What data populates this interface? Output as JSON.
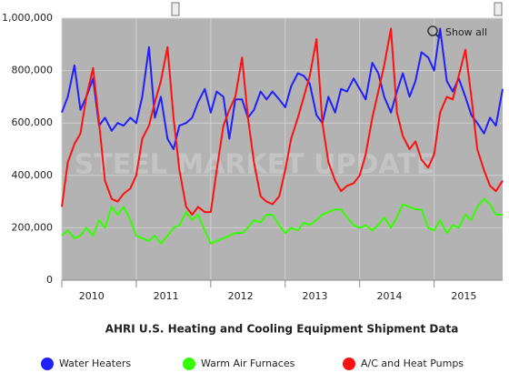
{
  "chart_data": {
    "type": "line",
    "title": "AHRI U.S. Heating and Cooling Equipment Shipment Data",
    "watermark": "STEEL MARKET UPDATE",
    "button": "Show all",
    "x": [
      2010,
      2010.08,
      2010.17,
      2010.25,
      2010.33,
      2010.42,
      2010.5,
      2010.58,
      2010.67,
      2010.75,
      2010.83,
      2010.92,
      2011,
      2011.08,
      2011.17,
      2011.25,
      2011.33,
      2011.42,
      2011.5,
      2011.58,
      2011.67,
      2011.75,
      2011.83,
      2011.92,
      2012,
      2012.08,
      2012.17,
      2012.25,
      2012.33,
      2012.42,
      2012.5,
      2012.58,
      2012.67,
      2012.75,
      2012.83,
      2012.92,
      2013,
      2013.08,
      2013.17,
      2013.25,
      2013.33,
      2013.42,
      2013.5,
      2013.58,
      2013.67,
      2013.75,
      2013.83,
      2013.92,
      2014,
      2014.08,
      2014.17,
      2014.25,
      2014.33,
      2014.42,
      2014.5,
      2014.58,
      2014.67,
      2014.75,
      2014.83,
      2014.92,
      2015,
      2015.08,
      2015.17,
      2015.25,
      2015.33,
      2015.42,
      2015.5,
      2015.58,
      2015.67,
      2015.75,
      2015.83,
      2015.92
    ],
    "series": [
      {
        "name": "Water Heaters",
        "color": "#1f1fff",
        "values": [
          640000,
          700000,
          820000,
          650000,
          700000,
          770000,
          590000,
          620000,
          570000,
          600000,
          590000,
          620000,
          600000,
          700000,
          890000,
          620000,
          700000,
          540000,
          500000,
          590000,
          600000,
          620000,
          680000,
          730000,
          640000,
          720000,
          700000,
          540000,
          690000,
          690000,
          620000,
          650000,
          720000,
          690000,
          720000,
          690000,
          660000,
          740000,
          790000,
          780000,
          750000,
          630000,
          600000,
          700000,
          640000,
          730000,
          720000,
          770000,
          730000,
          690000,
          830000,
          790000,
          700000,
          640000,
          720000,
          790000,
          700000,
          760000,
          870000,
          850000,
          800000,
          960000,
          760000,
          720000,
          770000,
          700000,
          630000,
          600000,
          560000,
          620000,
          590000,
          730000
        ]
      },
      {
        "name": "Warm Air Furnaces",
        "color": "#33ff00",
        "values": [
          170000,
          190000,
          160000,
          170000,
          200000,
          170000,
          230000,
          200000,
          280000,
          250000,
          280000,
          230000,
          170000,
          160000,
          150000,
          170000,
          140000,
          170000,
          200000,
          210000,
          260000,
          230000,
          250000,
          190000,
          140000,
          150000,
          160000,
          170000,
          180000,
          180000,
          200000,
          230000,
          220000,
          250000,
          250000,
          210000,
          180000,
          200000,
          190000,
          220000,
          210000,
          230000,
          250000,
          260000,
          270000,
          270000,
          240000,
          210000,
          200000,
          210000,
          190000,
          210000,
          240000,
          200000,
          240000,
          290000,
          280000,
          270000,
          270000,
          200000,
          190000,
          230000,
          180000,
          210000,
          200000,
          250000,
          230000,
          280000,
          310000,
          290000,
          250000,
          250000
        ]
      },
      {
        "name": "A/C and Heat Pumps",
        "color": "#ff1010",
        "values": [
          280000,
          450000,
          520000,
          560000,
          700000,
          810000,
          600000,
          380000,
          310000,
          300000,
          330000,
          350000,
          400000,
          540000,
          590000,
          680000,
          760000,
          890000,
          620000,
          420000,
          280000,
          250000,
          280000,
          260000,
          260000,
          420000,
          590000,
          650000,
          700000,
          850000,
          620000,
          450000,
          320000,
          300000,
          290000,
          320000,
          420000,
          540000,
          620000,
          700000,
          780000,
          920000,
          600000,
          450000,
          380000,
          340000,
          360000,
          370000,
          400000,
          480000,
          620000,
          720000,
          820000,
          960000,
          640000,
          550000,
          500000,
          530000,
          460000,
          430000,
          480000,
          640000,
          700000,
          690000,
          780000,
          880000,
          700000,
          500000,
          420000,
          360000,
          340000,
          380000
        ]
      }
    ],
    "xlim": [
      2010,
      2015.92
    ],
    "xticks": [
      2010,
      2011,
      2012,
      2013,
      2014,
      2015
    ],
    "ylim": [
      0,
      1000000
    ],
    "yticks": [
      0,
      {
        "value": 200000,
        "label": "200,000"
      },
      {
        "value": 400000,
        "label": "400,000"
      },
      {
        "value": 600000,
        "label": "600,000"
      },
      {
        "value": 800000,
        "label": "800,000"
      },
      {
        "value": 1000000,
        "label": "1,000,000"
      }
    ],
    "grid": true
  }
}
